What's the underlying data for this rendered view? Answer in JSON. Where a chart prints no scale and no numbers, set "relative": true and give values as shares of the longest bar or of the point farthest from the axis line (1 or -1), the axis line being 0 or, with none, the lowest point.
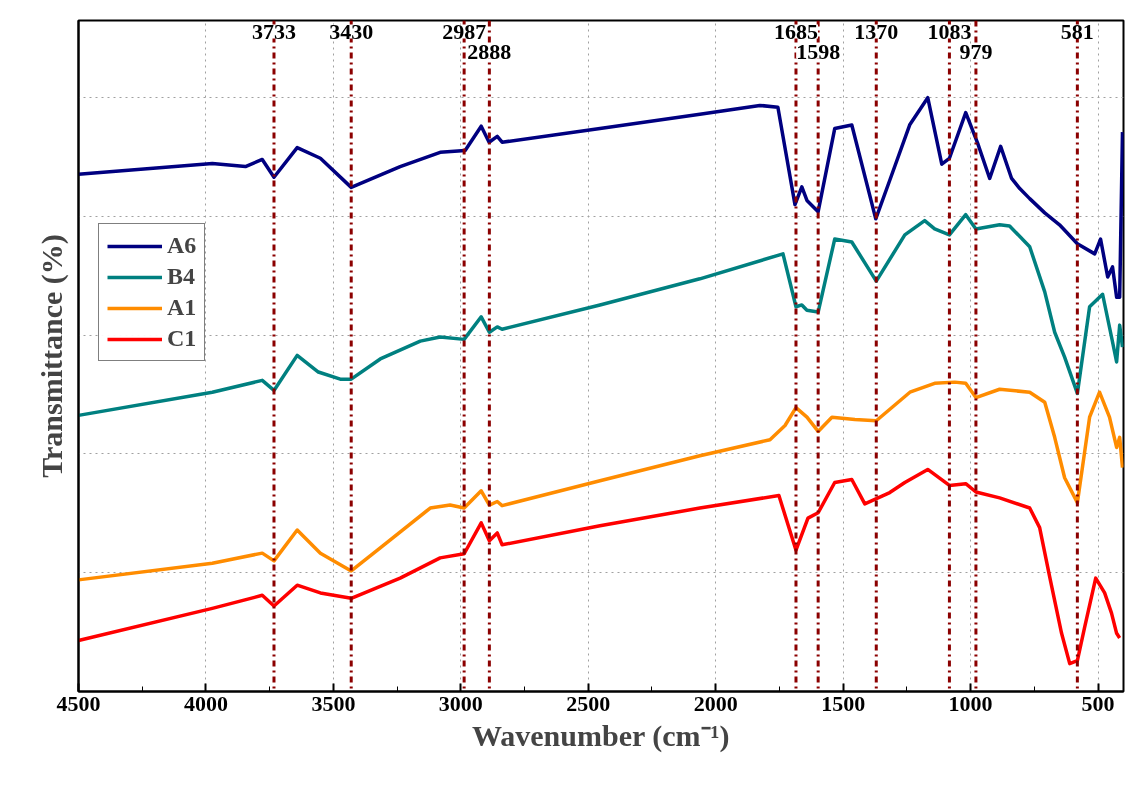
{
  "chart_data": {
    "type": "line",
    "xlabel": "Wavenumber (cm⁻¹)",
    "ylabel": "Transmittance (%)",
    "relative": true,
    "xlim": [
      4500,
      400
    ],
    "xticks": [
      4500,
      4000,
      3500,
      3000,
      2500,
      2000,
      1500,
      1000,
      500
    ],
    "grid": true,
    "legend": "top left",
    "tick_labels": "x",
    "line_style": "solid",
    "marker": "none",
    "series": [
      {
        "name": "A6",
        "color": "#000080",
        "x": [
          4500,
          3975,
          3845,
          3779,
          3733,
          3642,
          3551,
          3430,
          3238,
          3081,
          2983,
          2920,
          2889,
          2857,
          2838,
          2454,
          2062,
          1827,
          1756,
          1689,
          1662,
          1642,
          1598,
          1533,
          1466,
          1372,
          1317,
          1238,
          1168,
          1113,
          1083,
          1019,
          972,
          925,
          882,
          839,
          807,
          768,
          709,
          651,
          581,
          513,
          490,
          462,
          443,
          427,
          415,
          404
        ],
        "values": [
          0.871,
          0.889,
          0.884,
          0.896,
          0.866,
          0.916,
          0.898,
          0.849,
          0.884,
          0.908,
          0.911,
          0.952,
          0.925,
          0.935,
          0.925,
          0.948,
          0.972,
          0.987,
          0.984,
          0.82,
          0.85,
          0.827,
          0.808,
          0.948,
          0.954,
          0.796,
          0.861,
          0.955,
          1.0,
          0.888,
          0.898,
          0.975,
          0.923,
          0.864,
          0.918,
          0.864,
          0.847,
          0.83,
          0.806,
          0.786,
          0.754,
          0.737,
          0.762,
          0.698,
          0.715,
          0.664,
          0.664,
          0.942
        ]
      },
      {
        "name": "B4",
        "color": "#008080",
        "x": [
          4500,
          3975,
          3779,
          3733,
          3642,
          3559,
          3473,
          3430,
          3316,
          3159,
          3081,
          2987,
          2920,
          2888,
          2857,
          2838,
          2454,
          2062,
          1736,
          1685,
          1662,
          1642,
          1598,
          1533,
          1466,
          1370,
          1258,
          1180,
          1141,
          1083,
          1019,
          979,
          886,
          847,
          768,
          709,
          670,
          631,
          581,
          533,
          482,
          447,
          427,
          415,
          404
        ],
        "values": [
          0.465,
          0.504,
          0.524,
          0.507,
          0.566,
          0.538,
          0.526,
          0.526,
          0.56,
          0.59,
          0.597,
          0.593,
          0.631,
          0.605,
          0.614,
          0.61,
          0.651,
          0.695,
          0.737,
          0.648,
          0.651,
          0.642,
          0.639,
          0.762,
          0.757,
          0.691,
          0.769,
          0.793,
          0.779,
          0.769,
          0.803,
          0.779,
          0.786,
          0.784,
          0.749,
          0.673,
          0.605,
          0.563,
          0.502,
          0.648,
          0.669,
          0.597,
          0.555,
          0.617,
          0.58
        ]
      },
      {
        "name": "A1",
        "color": "#ff8c00",
        "x": [
          4500,
          3975,
          3779,
          3733,
          3642,
          3551,
          3430,
          3316,
          3120,
          3042,
          2987,
          2920,
          2888,
          2857,
          2838,
          2454,
          2062,
          1787,
          1728,
          1685,
          1642,
          1598,
          1544,
          1454,
          1370,
          1238,
          1141,
          1062,
          1019,
          979,
          886,
          768,
          709,
          670,
          631,
          581,
          533,
          494,
          455,
          427,
          415,
          404
        ],
        "values": [
          0.188,
          0.216,
          0.233,
          0.22,
          0.272,
          0.233,
          0.203,
          0.242,
          0.309,
          0.314,
          0.309,
          0.338,
          0.314,
          0.32,
          0.313,
          0.355,
          0.397,
          0.424,
          0.448,
          0.478,
          0.462,
          0.438,
          0.462,
          0.458,
          0.456,
          0.504,
          0.519,
          0.521,
          0.519,
          0.495,
          0.509,
          0.504,
          0.487,
          0.428,
          0.36,
          0.318,
          0.462,
          0.504,
          0.462,
          0.411,
          0.428,
          0.377
        ]
      },
      {
        "name": "C1",
        "color": "#ff0000",
        "x": [
          4500,
          3975,
          3779,
          3733,
          3642,
          3551,
          3430,
          3238,
          3081,
          2987,
          2920,
          2888,
          2857,
          2838,
          2454,
          2062,
          1752,
          1685,
          1638,
          1598,
          1533,
          1466,
          1415,
          1317,
          1258,
          1168,
          1083,
          1019,
          979,
          886,
          768,
          729,
          690,
          643,
          611,
          581,
          553,
          509,
          474,
          447,
          427,
          415
        ],
        "values": [
          0.086,
          0.14,
          0.162,
          0.144,
          0.179,
          0.166,
          0.157,
          0.191,
          0.225,
          0.232,
          0.284,
          0.254,
          0.267,
          0.247,
          0.279,
          0.309,
          0.33,
          0.238,
          0.292,
          0.301,
          0.352,
          0.357,
          0.316,
          0.335,
          0.352,
          0.374,
          0.347,
          0.35,
          0.336,
          0.326,
          0.309,
          0.276,
          0.194,
          0.098,
          0.047,
          0.052,
          0.107,
          0.191,
          0.166,
          0.132,
          0.098,
          0.09
        ]
      }
    ],
    "ref_lines": [
      {
        "axis": "x",
        "value": 3733,
        "label": "3733",
        "color": "#8b0000",
        "line_style": "dashdot"
      },
      {
        "axis": "x",
        "value": 3430,
        "label": "3430",
        "color": "#8b0000",
        "line_style": "dashdot"
      },
      {
        "axis": "x",
        "value": 2987,
        "label": "2987",
        "color": "#8b0000",
        "line_style": "dashdot"
      },
      {
        "axis": "x",
        "value": 2888,
        "label": "2888",
        "color": "#8b0000",
        "line_style": "dashdot"
      },
      {
        "axis": "x",
        "value": 1685,
        "label": "1685",
        "color": "#8b0000",
        "line_style": "dashdot"
      },
      {
        "axis": "x",
        "value": 1598,
        "label": "1598",
        "color": "#8b0000",
        "line_style": "dashdot"
      },
      {
        "axis": "x",
        "value": 1370,
        "label": "1370",
        "color": "#8b0000",
        "line_style": "dashdot"
      },
      {
        "axis": "x",
        "value": 1083,
        "label": "1083",
        "color": "#8b0000",
        "line_style": "dashdot"
      },
      {
        "axis": "x",
        "value": 979,
        "label": "979",
        "color": "#8b0000",
        "line_style": "dashdot"
      },
      {
        "axis": "x",
        "value": 581,
        "label": "581",
        "color": "#8b0000",
        "line_style": "dashdot"
      }
    ]
  }
}
